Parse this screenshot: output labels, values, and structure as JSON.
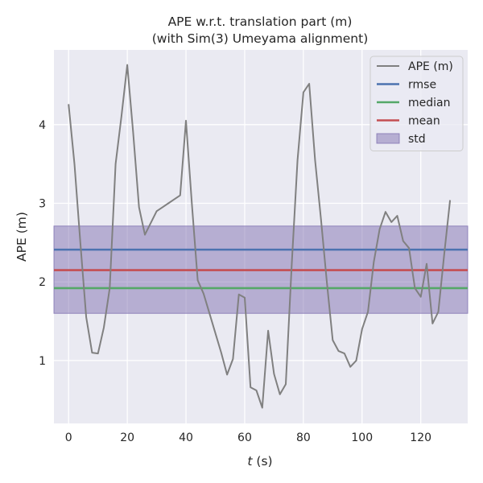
{
  "chart_data": {
    "type": "line",
    "title": "APE w.r.t. translation part (m)",
    "subtitle": "(with Sim(3) Umeyama alignment)",
    "xlabel_var": "t",
    "xlabel_unit": " (s)",
    "ylabel": "APE (m)",
    "xlim": [
      -5,
      136
    ],
    "ylim": [
      0.2,
      4.95
    ],
    "xticks": [
      0,
      20,
      40,
      60,
      80,
      100,
      120
    ],
    "yticks": [
      1,
      2,
      3,
      4
    ],
    "grid": true,
    "legend_position": "top-right",
    "series": [
      {
        "name": "APE (m)",
        "color": "#808080",
        "x": [
          0,
          2,
          4,
          6,
          8,
          10,
          12,
          14,
          16,
          18,
          20,
          22,
          24,
          26,
          28,
          30,
          32,
          34,
          36,
          38,
          40,
          42,
          44,
          46,
          48,
          50,
          52,
          54,
          56,
          58,
          60,
          62,
          64,
          66,
          68,
          70,
          72,
          74,
          76,
          78,
          80,
          82,
          84,
          86,
          88,
          90,
          92,
          94,
          96,
          98,
          100,
          102,
          104,
          106,
          108,
          110,
          112,
          114,
          116,
          118,
          120,
          122,
          124,
          126,
          128,
          130
        ],
        "y": [
          4.26,
          3.5,
          2.5,
          1.55,
          1.1,
          1.09,
          1.42,
          1.92,
          3.5,
          4.1,
          4.76,
          3.9,
          2.95,
          2.6,
          2.75,
          2.9,
          2.95,
          3.0,
          3.05,
          3.1,
          4.05,
          3.0,
          2.02,
          1.85,
          1.6,
          1.35,
          1.1,
          0.82,
          1.02,
          1.84,
          1.8,
          0.66,
          0.62,
          0.4,
          1.38,
          0.83,
          0.57,
          0.7,
          2.2,
          3.55,
          4.41,
          4.52,
          3.55,
          2.8,
          2.0,
          1.26,
          1.12,
          1.09,
          0.92,
          1.0,
          1.4,
          1.62,
          2.25,
          2.67,
          2.89,
          2.76,
          2.84,
          2.52,
          2.43,
          1.92,
          1.81,
          2.23,
          1.47,
          1.62,
          2.35,
          3.04
        ]
      }
    ],
    "reference_lines": [
      {
        "name": "rmse",
        "value": 2.41,
        "color": "#4c72b0"
      },
      {
        "name": "median",
        "value": 1.92,
        "color": "#55a868"
      },
      {
        "name": "mean",
        "value": 2.15,
        "color": "#c44e52"
      }
    ],
    "band": {
      "name": "std",
      "lower": 1.6,
      "upper": 2.71,
      "color": "#8172b2"
    },
    "legend_order": [
      "APE (m)",
      "rmse",
      "median",
      "mean",
      "std"
    ]
  }
}
